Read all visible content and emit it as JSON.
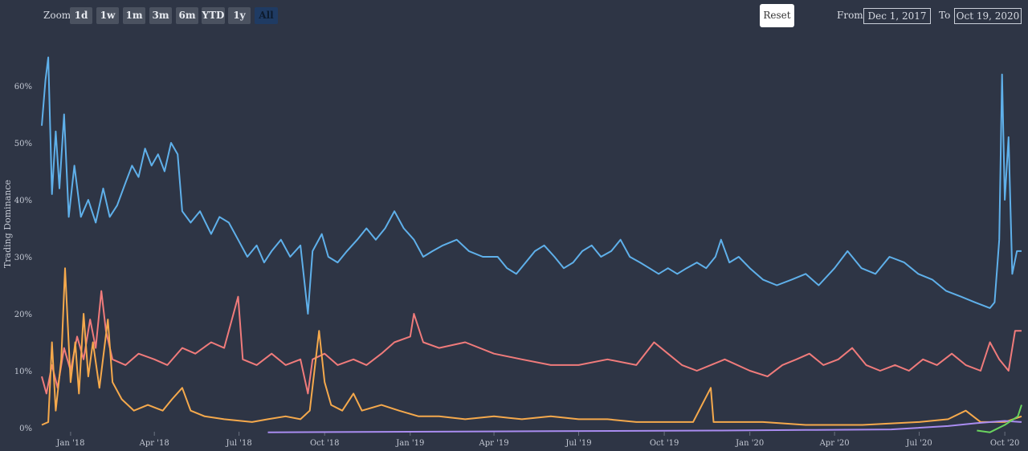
{
  "toolbar": {
    "zoom_label": "Zoom",
    "zoom_buttons": [
      {
        "label": "1d",
        "active": false
      },
      {
        "label": "1w",
        "active": false
      },
      {
        "label": "1m",
        "active": false
      },
      {
        "label": "3m",
        "active": false
      },
      {
        "label": "6m",
        "active": false
      },
      {
        "label": "YTD",
        "active": false
      },
      {
        "label": "1y",
        "active": false
      },
      {
        "label": "All",
        "active": true
      }
    ],
    "reset_label": "Reset",
    "from_label": "From",
    "from_value": "Dec 1, 2017",
    "to_label": "To",
    "to_value": "Oct 19, 2020"
  },
  "colors": {
    "background": "#2e3545",
    "axis_text": "#c4c9d4"
  },
  "chart_data": {
    "type": "line",
    "ylabel": "Trading Dominance",
    "ylim": [
      0,
      68
    ],
    "yticks": [
      0,
      10,
      20,
      30,
      40,
      50,
      60
    ],
    "ytick_labels": [
      "0%",
      "10%",
      "20%",
      "30%",
      "40%",
      "50%",
      "60%"
    ],
    "x_range": [
      "2017-12-01",
      "2020-10-19"
    ],
    "xticks": [
      {
        "date": "2018-01-01",
        "label": "Jan '18"
      },
      {
        "date": "2018-04-01",
        "label": "Apr '18"
      },
      {
        "date": "2018-07-01",
        "label": "Jul '18"
      },
      {
        "date": "2018-10-01",
        "label": "Oct '18"
      },
      {
        "date": "2019-01-01",
        "label": "Jan '19"
      },
      {
        "date": "2019-04-01",
        "label": "Apr '19"
      },
      {
        "date": "2019-07-01",
        "label": "Jul '19"
      },
      {
        "date": "2019-10-01",
        "label": "Oct '19"
      },
      {
        "date": "2020-01-01",
        "label": "Jan '20"
      },
      {
        "date": "2020-04-01",
        "label": "Apr '20"
      },
      {
        "date": "2020-07-01",
        "label": "Jul '20"
      },
      {
        "date": "2020-10-01",
        "label": "Oct '20"
      }
    ],
    "legend": "none",
    "series": [
      {
        "color": "#5fb0ea",
        "points": [
          [
            "2017-12-01",
            53
          ],
          [
            "2017-12-05",
            61
          ],
          [
            "2017-12-08",
            65
          ],
          [
            "2017-12-12",
            41
          ],
          [
            "2017-12-16",
            52
          ],
          [
            "2017-12-20",
            42
          ],
          [
            "2017-12-25",
            55
          ],
          [
            "2017-12-30",
            37
          ],
          [
            "2018-01-05",
            46
          ],
          [
            "2018-01-12",
            37
          ],
          [
            "2018-01-20",
            40
          ],
          [
            "2018-01-28",
            36
          ],
          [
            "2018-02-05",
            42
          ],
          [
            "2018-02-12",
            37
          ],
          [
            "2018-02-20",
            39
          ],
          [
            "2018-03-01",
            43
          ],
          [
            "2018-03-08",
            46
          ],
          [
            "2018-03-15",
            44
          ],
          [
            "2018-03-22",
            49
          ],
          [
            "2018-03-29",
            46
          ],
          [
            "2018-04-05",
            48
          ],
          [
            "2018-04-12",
            45
          ],
          [
            "2018-04-19",
            50
          ],
          [
            "2018-04-26",
            48
          ],
          [
            "2018-05-01",
            38
          ],
          [
            "2018-05-10",
            36
          ],
          [
            "2018-05-20",
            38
          ],
          [
            "2018-06-01",
            34
          ],
          [
            "2018-06-10",
            37
          ],
          [
            "2018-06-20",
            36
          ],
          [
            "2018-06-30",
            33
          ],
          [
            "2018-07-10",
            30
          ],
          [
            "2018-07-20",
            32
          ],
          [
            "2018-07-28",
            29
          ],
          [
            "2018-08-05",
            31
          ],
          [
            "2018-08-15",
            33
          ],
          [
            "2018-08-25",
            30
          ],
          [
            "2018-09-05",
            32
          ],
          [
            "2018-09-13",
            20
          ],
          [
            "2018-09-18",
            31
          ],
          [
            "2018-09-28",
            34
          ],
          [
            "2018-10-05",
            30
          ],
          [
            "2018-10-15",
            29
          ],
          [
            "2018-10-25",
            31
          ],
          [
            "2018-11-05",
            33
          ],
          [
            "2018-11-15",
            35
          ],
          [
            "2018-11-25",
            33
          ],
          [
            "2018-12-05",
            35
          ],
          [
            "2018-12-15",
            38
          ],
          [
            "2018-12-25",
            35
          ],
          [
            "2019-01-05",
            33
          ],
          [
            "2019-01-15",
            30
          ],
          [
            "2019-01-25",
            31
          ],
          [
            "2019-02-05",
            32
          ],
          [
            "2019-02-20",
            33
          ],
          [
            "2019-03-05",
            31
          ],
          [
            "2019-03-20",
            30
          ],
          [
            "2019-04-05",
            30
          ],
          [
            "2019-04-15",
            28
          ],
          [
            "2019-04-25",
            27
          ],
          [
            "2019-05-05",
            29
          ],
          [
            "2019-05-15",
            31
          ],
          [
            "2019-05-25",
            32
          ],
          [
            "2019-06-05",
            30
          ],
          [
            "2019-06-15",
            28
          ],
          [
            "2019-06-25",
            29
          ],
          [
            "2019-07-05",
            31
          ],
          [
            "2019-07-15",
            32
          ],
          [
            "2019-07-25",
            30
          ],
          [
            "2019-08-05",
            31
          ],
          [
            "2019-08-15",
            33
          ],
          [
            "2019-08-25",
            30
          ],
          [
            "2019-09-05",
            29
          ],
          [
            "2019-09-15",
            28
          ],
          [
            "2019-09-25",
            27
          ],
          [
            "2019-10-05",
            28
          ],
          [
            "2019-10-15",
            27
          ],
          [
            "2019-10-25",
            28
          ],
          [
            "2019-11-05",
            29
          ],
          [
            "2019-11-15",
            28
          ],
          [
            "2019-11-25",
            30
          ],
          [
            "2019-12-01",
            33
          ],
          [
            "2019-12-10",
            29
          ],
          [
            "2019-12-20",
            30
          ],
          [
            "2020-01-01",
            28
          ],
          [
            "2020-01-15",
            26
          ],
          [
            "2020-01-30",
            25
          ],
          [
            "2020-02-15",
            26
          ],
          [
            "2020-03-01",
            27
          ],
          [
            "2020-03-15",
            25
          ],
          [
            "2020-04-01",
            28
          ],
          [
            "2020-04-15",
            31
          ],
          [
            "2020-04-30",
            28
          ],
          [
            "2020-05-15",
            27
          ],
          [
            "2020-05-30",
            30
          ],
          [
            "2020-06-15",
            29
          ],
          [
            "2020-06-30",
            27
          ],
          [
            "2020-07-15",
            26
          ],
          [
            "2020-07-30",
            24
          ],
          [
            "2020-08-15",
            23
          ],
          [
            "2020-08-30",
            22
          ],
          [
            "2020-09-15",
            21
          ],
          [
            "2020-09-20",
            22
          ],
          [
            "2020-09-25",
            33
          ],
          [
            "2020-09-28",
            62
          ],
          [
            "2020-10-01",
            40
          ],
          [
            "2020-10-05",
            51
          ],
          [
            "2020-10-09",
            27
          ],
          [
            "2020-10-14",
            31
          ],
          [
            "2020-10-19",
            31
          ]
        ]
      },
      {
        "color": "#f07b7b",
        "points": [
          [
            "2017-12-01",
            9
          ],
          [
            "2017-12-06",
            6
          ],
          [
            "2017-12-12",
            11
          ],
          [
            "2017-12-18",
            7
          ],
          [
            "2017-12-25",
            14
          ],
          [
            "2018-01-01",
            10
          ],
          [
            "2018-01-08",
            16
          ],
          [
            "2018-01-15",
            12
          ],
          [
            "2018-01-22",
            19
          ],
          [
            "2018-01-28",
            14
          ],
          [
            "2018-02-03",
            24
          ],
          [
            "2018-02-08",
            17
          ],
          [
            "2018-02-15",
            12
          ],
          [
            "2018-03-01",
            11
          ],
          [
            "2018-03-15",
            13
          ],
          [
            "2018-04-01",
            12
          ],
          [
            "2018-04-15",
            11
          ],
          [
            "2018-05-01",
            14
          ],
          [
            "2018-05-15",
            13
          ],
          [
            "2018-06-01",
            15
          ],
          [
            "2018-06-15",
            14
          ],
          [
            "2018-06-30",
            23
          ],
          [
            "2018-07-05",
            12
          ],
          [
            "2018-07-20",
            11
          ],
          [
            "2018-08-05",
            13
          ],
          [
            "2018-08-20",
            11
          ],
          [
            "2018-09-05",
            12
          ],
          [
            "2018-09-13",
            6
          ],
          [
            "2018-09-18",
            12
          ],
          [
            "2018-10-01",
            13
          ],
          [
            "2018-10-15",
            11
          ],
          [
            "2018-11-01",
            12
          ],
          [
            "2018-11-15",
            11
          ],
          [
            "2018-12-01",
            13
          ],
          [
            "2018-12-15",
            15
          ],
          [
            "2019-01-01",
            16
          ],
          [
            "2019-01-05",
            20
          ],
          [
            "2019-01-15",
            15
          ],
          [
            "2019-02-01",
            14
          ],
          [
            "2019-03-01",
            15
          ],
          [
            "2019-04-01",
            13
          ],
          [
            "2019-05-01",
            12
          ],
          [
            "2019-06-01",
            11
          ],
          [
            "2019-07-01",
            11
          ],
          [
            "2019-08-01",
            12
          ],
          [
            "2019-09-01",
            11
          ],
          [
            "2019-09-20",
            15
          ],
          [
            "2019-10-05",
            13
          ],
          [
            "2019-10-20",
            11
          ],
          [
            "2019-11-05",
            10
          ],
          [
            "2019-11-20",
            11
          ],
          [
            "2019-12-05",
            12
          ],
          [
            "2020-01-01",
            10
          ],
          [
            "2020-01-20",
            9
          ],
          [
            "2020-02-05",
            11
          ],
          [
            "2020-02-20",
            12
          ],
          [
            "2020-03-05",
            13
          ],
          [
            "2020-03-20",
            11
          ],
          [
            "2020-04-05",
            12
          ],
          [
            "2020-04-20",
            14
          ],
          [
            "2020-05-05",
            11
          ],
          [
            "2020-05-20",
            10
          ],
          [
            "2020-06-05",
            11
          ],
          [
            "2020-06-20",
            10
          ],
          [
            "2020-07-05",
            12
          ],
          [
            "2020-07-20",
            11
          ],
          [
            "2020-08-05",
            13
          ],
          [
            "2020-08-20",
            11
          ],
          [
            "2020-09-05",
            10
          ],
          [
            "2020-09-15",
            15
          ],
          [
            "2020-09-25",
            12
          ],
          [
            "2020-10-05",
            10
          ],
          [
            "2020-10-12",
            17
          ],
          [
            "2020-10-19",
            17
          ]
        ]
      },
      {
        "color": "#f5a94c",
        "points": [
          [
            "2017-12-01",
            0.5
          ],
          [
            "2017-12-08",
            1
          ],
          [
            "2017-12-12",
            15
          ],
          [
            "2017-12-16",
            3
          ],
          [
            "2017-12-22",
            12
          ],
          [
            "2017-12-26",
            28
          ],
          [
            "2018-01-01",
            8
          ],
          [
            "2018-01-06",
            15
          ],
          [
            "2018-01-10",
            6
          ],
          [
            "2018-01-15",
            20
          ],
          [
            "2018-01-20",
            9
          ],
          [
            "2018-01-25",
            15
          ],
          [
            "2018-02-01",
            7
          ],
          [
            "2018-02-10",
            19
          ],
          [
            "2018-02-15",
            8
          ],
          [
            "2018-02-25",
            5
          ],
          [
            "2018-03-10",
            3
          ],
          [
            "2018-03-25",
            4
          ],
          [
            "2018-04-10",
            3
          ],
          [
            "2018-04-20",
            5
          ],
          [
            "2018-05-01",
            7
          ],
          [
            "2018-05-10",
            3
          ],
          [
            "2018-05-25",
            2
          ],
          [
            "2018-06-15",
            1.5
          ],
          [
            "2018-07-15",
            1
          ],
          [
            "2018-08-01",
            1.5
          ],
          [
            "2018-08-20",
            2
          ],
          [
            "2018-09-05",
            1.5
          ],
          [
            "2018-09-15",
            3
          ],
          [
            "2018-09-25",
            17
          ],
          [
            "2018-10-01",
            8
          ],
          [
            "2018-10-08",
            4
          ],
          [
            "2018-10-20",
            3
          ],
          [
            "2018-11-01",
            6
          ],
          [
            "2018-11-10",
            3
          ],
          [
            "2018-12-01",
            4
          ],
          [
            "2018-12-20",
            3
          ],
          [
            "2019-01-10",
            2
          ],
          [
            "2019-02-01",
            2
          ],
          [
            "2019-03-01",
            1.5
          ],
          [
            "2019-04-01",
            2
          ],
          [
            "2019-05-01",
            1.5
          ],
          [
            "2019-06-01",
            2
          ],
          [
            "2019-07-01",
            1.5
          ],
          [
            "2019-08-01",
            1.5
          ],
          [
            "2019-09-01",
            1
          ],
          [
            "2019-10-01",
            1
          ],
          [
            "2019-11-01",
            1
          ],
          [
            "2019-11-20",
            7
          ],
          [
            "2019-11-23",
            1
          ],
          [
            "2019-12-15",
            1
          ],
          [
            "2020-01-15",
            1
          ],
          [
            "2020-03-01",
            0.5
          ],
          [
            "2020-05-01",
            0.5
          ],
          [
            "2020-07-01",
            1
          ],
          [
            "2020-08-01",
            1.5
          ],
          [
            "2020-08-20",
            3
          ],
          [
            "2020-09-05",
            1
          ],
          [
            "2020-10-01",
            1
          ],
          [
            "2020-10-19",
            2
          ]
        ]
      },
      {
        "color": "#a98cf0",
        "points": [
          [
            "2018-08-01",
            -0.8
          ],
          [
            "2019-01-01",
            -0.7
          ],
          [
            "2019-06-01",
            -0.6
          ],
          [
            "2019-12-01",
            -0.5
          ],
          [
            "2020-03-01",
            -0.4
          ],
          [
            "2020-06-01",
            -0.3
          ],
          [
            "2020-08-01",
            0.3
          ],
          [
            "2020-09-01",
            0.8
          ],
          [
            "2020-10-01",
            1.2
          ],
          [
            "2020-10-19",
            1.0
          ]
        ]
      },
      {
        "color": "#6ad45f",
        "points": [
          [
            "2020-09-01",
            -0.5
          ],
          [
            "2020-09-15",
            -0.8
          ],
          [
            "2020-10-01",
            0.5
          ],
          [
            "2020-10-15",
            2
          ],
          [
            "2020-10-19",
            4
          ]
        ]
      }
    ]
  }
}
